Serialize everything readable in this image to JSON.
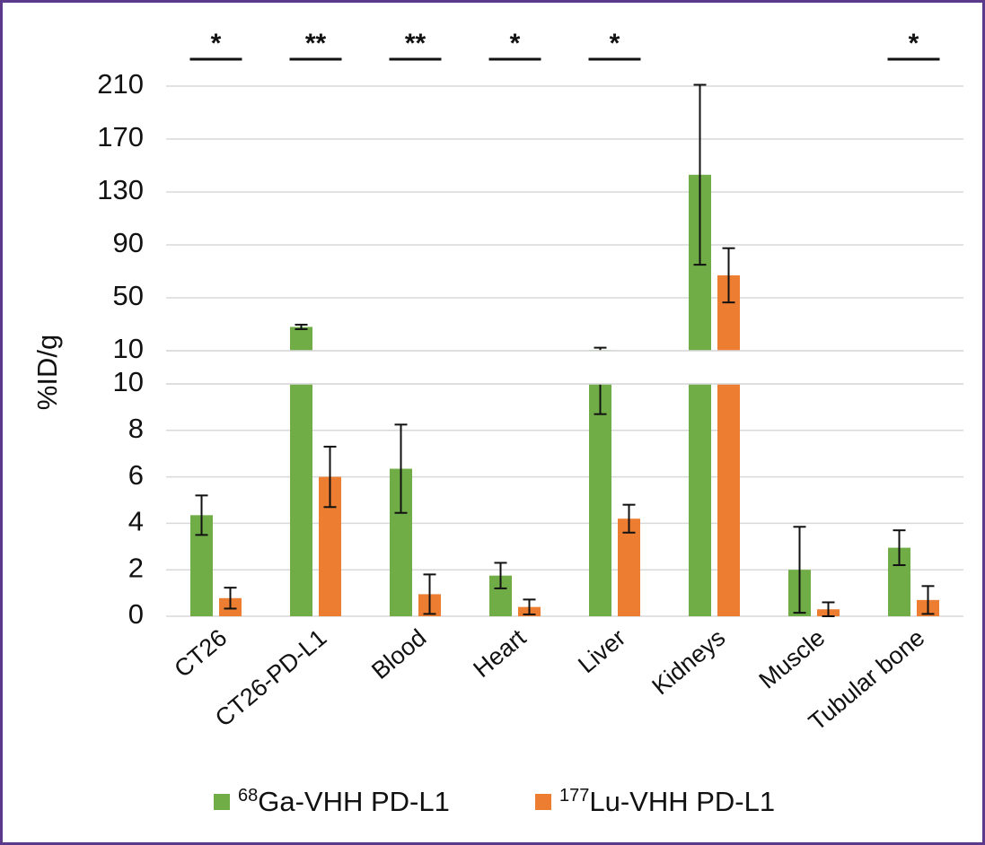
{
  "chart_data": {
    "type": "bar",
    "ylabel": "%ID/g",
    "categories": [
      "CT26",
      "CT26-PD-L1",
      "Blood",
      "Heart",
      "Liver",
      "Kidneys",
      "Muscle",
      "Tubular bone"
    ],
    "axis_break": true,
    "lower_axis": {
      "ylim": [
        0,
        10
      ],
      "ticks": [
        "0",
        "2",
        "4",
        "6",
        "8",
        "10"
      ]
    },
    "upper_axis": {
      "ylim": [
        10,
        210
      ],
      "ticks": [
        "10",
        "50",
        "90",
        "130",
        "170",
        "210"
      ]
    },
    "grid": true,
    "legend_position": "bottom",
    "series": [
      {
        "name_sup": "68",
        "name_text": "Ga-VHH PD-L1",
        "color": "#70ad47",
        "values": [
          4.35,
          28,
          6.35,
          1.75,
          10.5,
          143,
          2.0,
          2.95
        ],
        "errors": [
          0.85,
          1.7,
          1.9,
          0.55,
          1.8,
          68,
          1.85,
          0.75
        ]
      },
      {
        "name_sup": "177",
        "name_text": "Lu-VHH PD-L1",
        "color": "#ed7d31",
        "values": [
          0.78,
          6.0,
          0.95,
          0.4,
          4.2,
          67,
          0.3,
          0.7
        ],
        "errors": [
          0.45,
          1.3,
          0.85,
          0.32,
          0.6,
          20.5,
          0.3,
          0.6
        ]
      }
    ],
    "significance": [
      {
        "category": "CT26",
        "label": "*"
      },
      {
        "category": "CT26-PD-L1",
        "label": "**"
      },
      {
        "category": "Blood",
        "label": "**"
      },
      {
        "category": "Heart",
        "label": "*"
      },
      {
        "category": "Liver",
        "label": "*"
      },
      {
        "category": "Tubular bone",
        "label": "*"
      }
    ]
  }
}
